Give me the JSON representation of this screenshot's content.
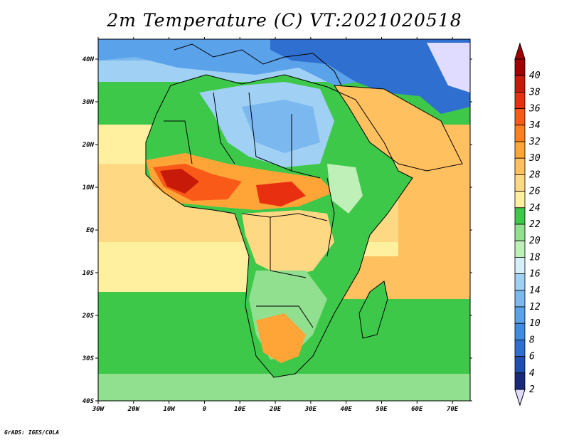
{
  "title": "2m Temperature (C) VT:2021020518",
  "credit": "GrADS: IGES/COLA",
  "map": {
    "lon_labels": [
      "30W",
      "20W",
      "10W",
      "0",
      "10E",
      "20E",
      "30E",
      "40E",
      "50E",
      "60E",
      "70E"
    ],
    "lat_labels": [
      "40N",
      "30N",
      "20N",
      "10N",
      "EQ",
      "10S",
      "20S",
      "30S",
      "40S"
    ]
  },
  "colorbar": {
    "levels": [
      "2",
      "4",
      "6",
      "8",
      "10",
      "12",
      "14",
      "16",
      "18",
      "20",
      "22",
      "24",
      "26",
      "28",
      "30",
      "32",
      "34",
      "36",
      "38",
      "40"
    ],
    "colors": [
      "#1a2a7a",
      "#1e4fb0",
      "#2f6fd0",
      "#3f8be0",
      "#5aa2ea",
      "#7ab8ef",
      "#a0d0f4",
      "#d6f0fa",
      "#bff0b8",
      "#90e090",
      "#3ec84a",
      "#fff0a0",
      "#ffd883",
      "#ffc060",
      "#ffa538",
      "#ff8020",
      "#f95a18",
      "#e83010",
      "#c81a08",
      "#a00000"
    ],
    "below_color": "#e0dcff",
    "above_color": "#a00000"
  }
}
